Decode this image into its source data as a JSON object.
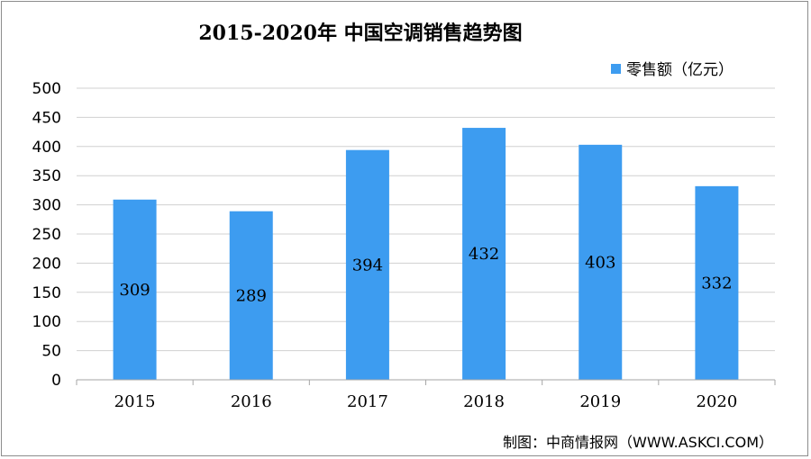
{
  "chart_data": {
    "type": "bar",
    "title": "2015-2020年 中国空调销售趋势图",
    "categories": [
      "2015",
      "2016",
      "2017",
      "2018",
      "2019",
      "2020"
    ],
    "series": [
      {
        "name": "零售额（亿元）",
        "values": [
          309,
          289,
          394,
          432,
          403,
          332
        ]
      }
    ],
    "ylim": [
      0,
      500
    ],
    "yticks": [
      0,
      50,
      100,
      150,
      200,
      250,
      300,
      350,
      400,
      450,
      500
    ],
    "grid": true,
    "legend_position": "top-right",
    "bar_color": "#3d9cf0"
  },
  "source": "制图：中商情报网（WWW.ASKCI.COM）"
}
